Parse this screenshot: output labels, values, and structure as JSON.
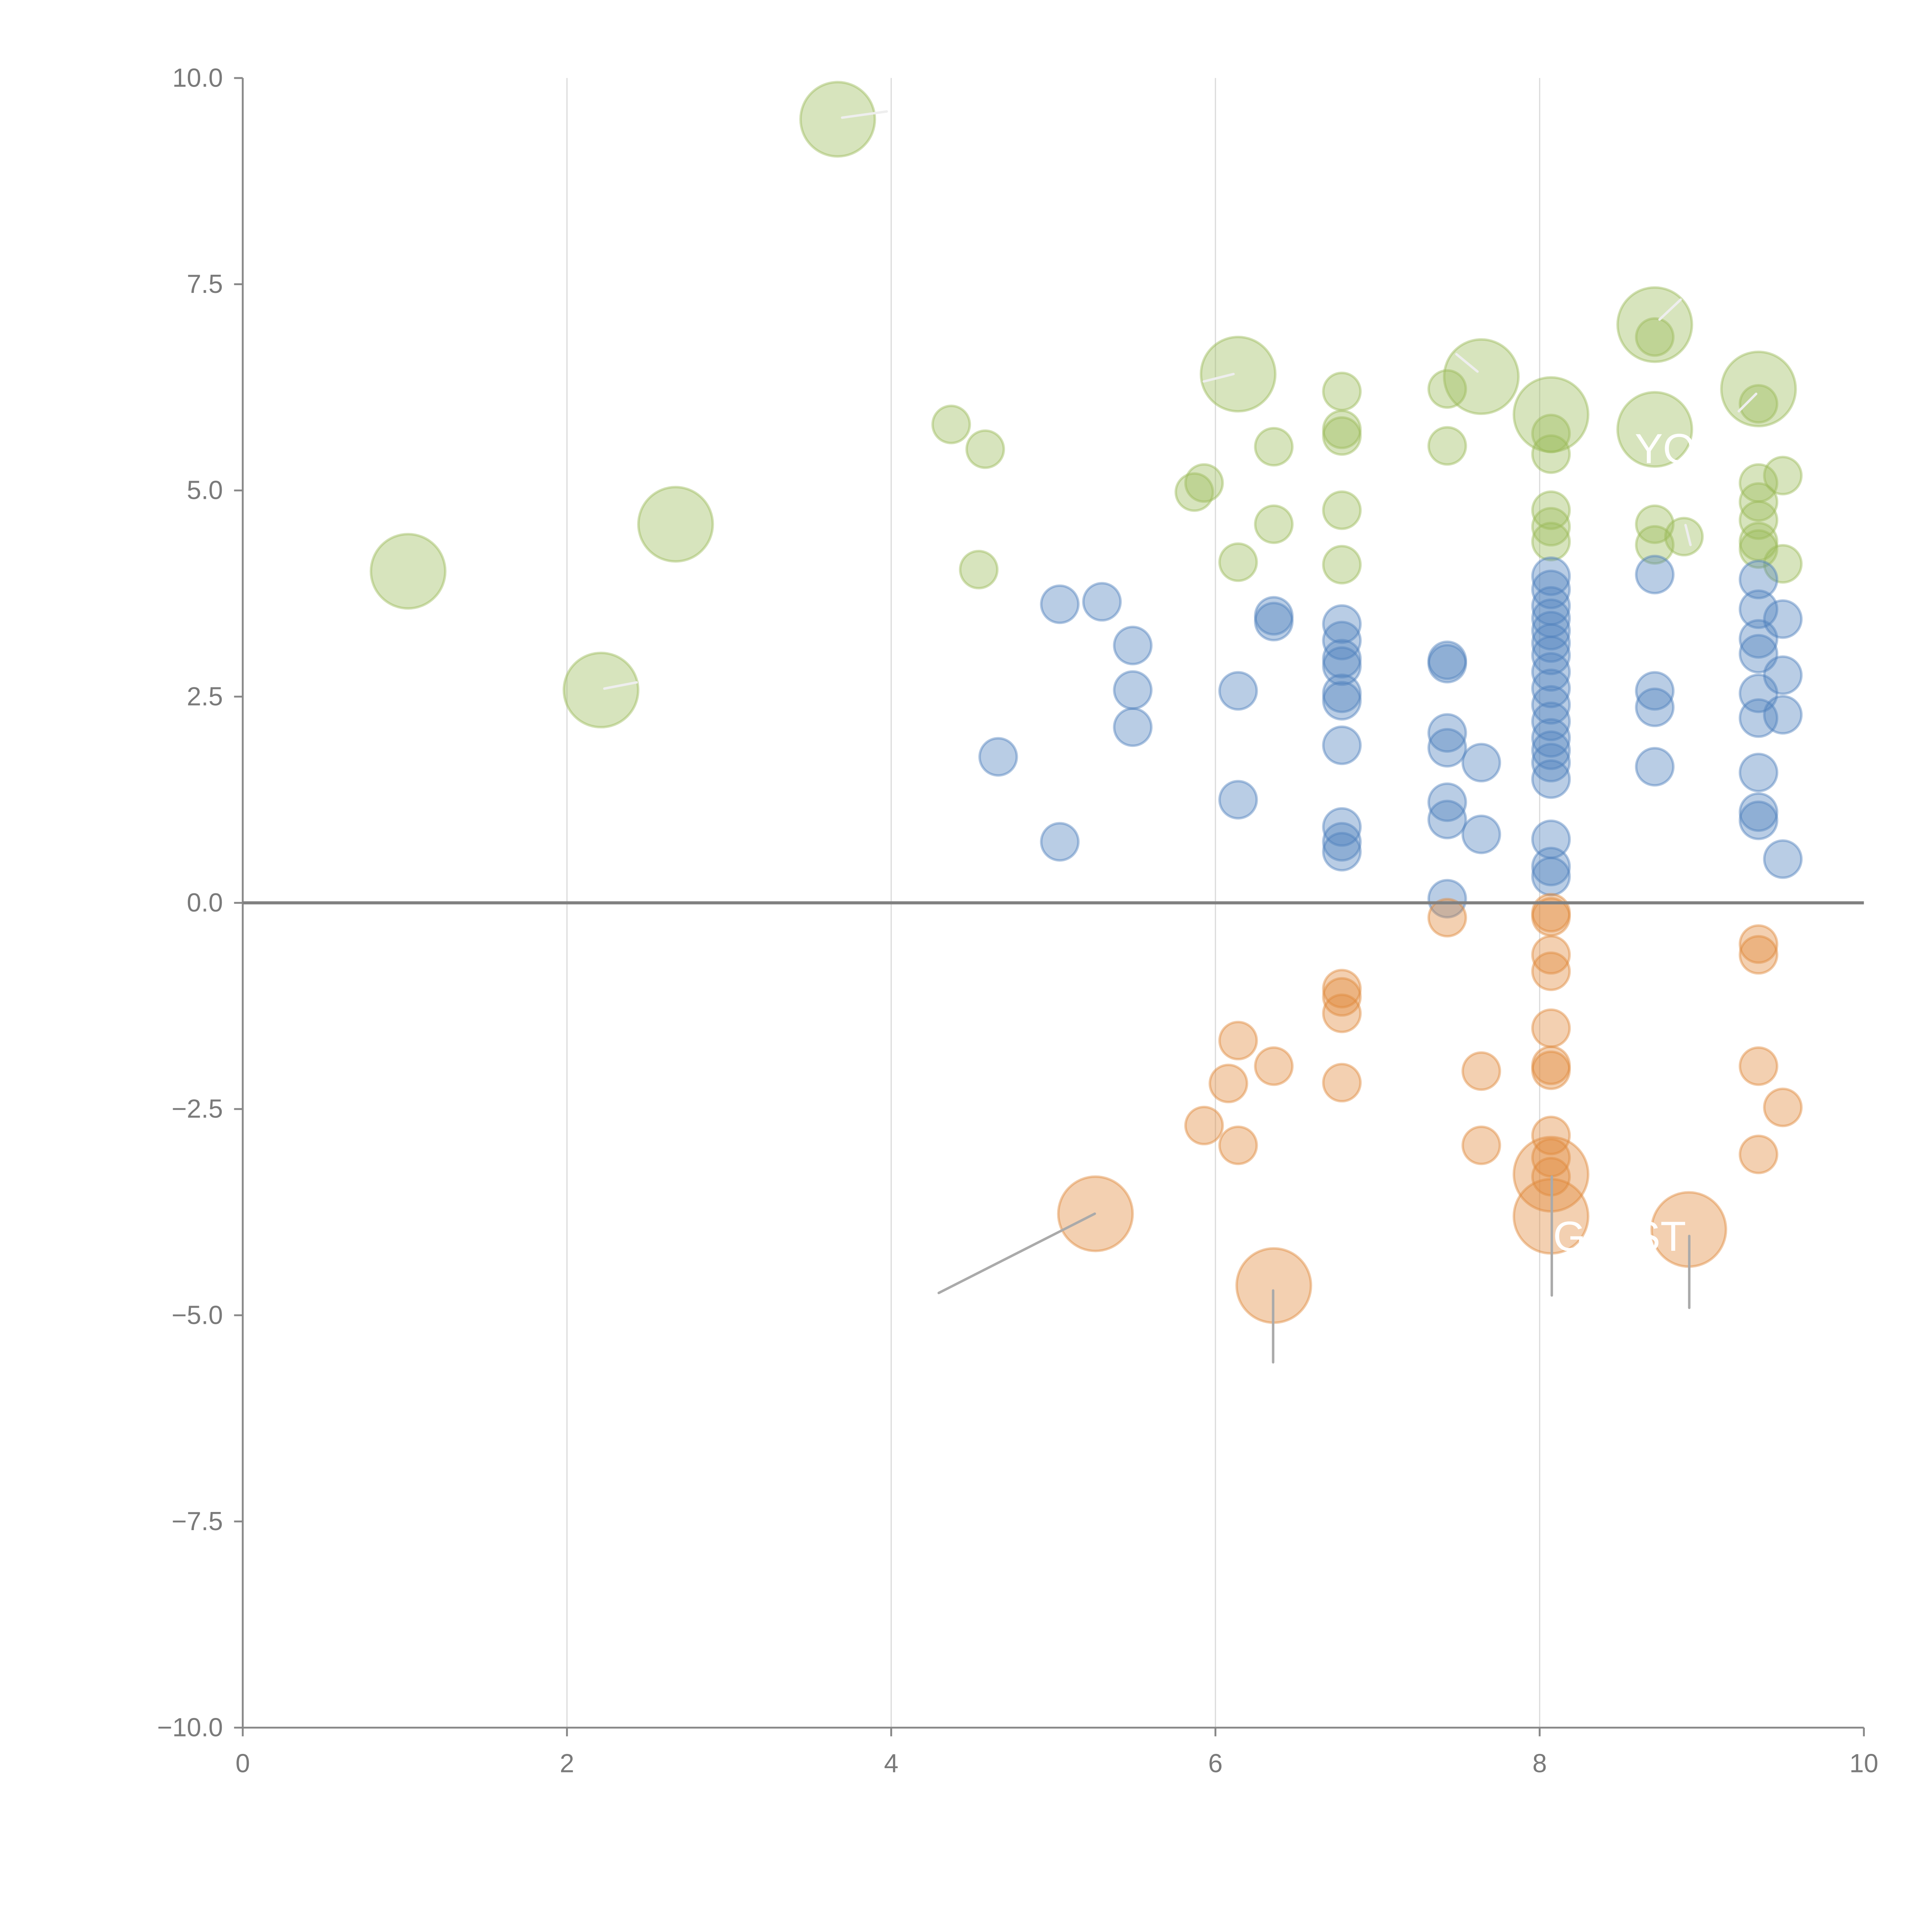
{
  "chart_data": {
    "type": "scatter",
    "title": "",
    "xlabel": "",
    "ylabel": "",
    "xlim": [
      0,
      10
    ],
    "ylim": [
      -10,
      10
    ],
    "grid": "vertical",
    "legend": "none",
    "x_ticks": [
      "0",
      "2",
      "4",
      "6",
      "8",
      "10"
    ],
    "y_ticks": [
      "10.0",
      "7.5",
      "5.0",
      "2.5",
      "0.0",
      "−2.5",
      "−5.0",
      "−7.5",
      "−10.0"
    ],
    "colors": {
      "green": "#9bbb59",
      "blue": "#4f81bd",
      "orange": "#e08a3c"
    },
    "annotations": [
      "YO",
      "G",
      "ST"
    ],
    "series": [
      {
        "name": "green",
        "color": "#9bbb59",
        "points": [
          [
            3.67,
            9.5,
            2
          ],
          [
            1.02,
            4.02,
            2
          ],
          [
            2.67,
            4.59,
            2
          ],
          [
            2.21,
            2.58,
            2
          ],
          [
            6.14,
            6.41,
            2
          ],
          [
            7.64,
            6.38,
            2
          ],
          [
            8.07,
            5.92,
            2
          ],
          [
            8.71,
            7.01,
            2
          ],
          [
            8.71,
            5.74,
            2
          ],
          [
            9.35,
            6.23,
            2
          ],
          [
            4.37,
            5.8,
            1
          ],
          [
            4.58,
            5.5,
            1
          ],
          [
            4.54,
            4.04,
            1
          ],
          [
            5.87,
            4.98,
            1
          ],
          [
            5.93,
            5.09,
            1
          ],
          [
            6.14,
            4.13,
            1
          ],
          [
            6.36,
            5.53,
            1
          ],
          [
            6.36,
            4.59,
            1
          ],
          [
            6.78,
            6.2,
            1
          ],
          [
            6.78,
            5.74,
            1
          ],
          [
            6.78,
            5.66,
            1
          ],
          [
            6.78,
            4.76,
            1
          ],
          [
            6.78,
            4.1,
            1
          ],
          [
            7.43,
            6.23,
            1
          ],
          [
            7.43,
            5.54,
            1
          ],
          [
            8.07,
            5.69,
            1
          ],
          [
            8.07,
            5.44,
            1
          ],
          [
            8.07,
            4.76,
            1
          ],
          [
            8.07,
            4.56,
            1
          ],
          [
            8.07,
            4.38,
            1
          ],
          [
            8.71,
            6.86,
            1
          ],
          [
            8.71,
            4.59,
            1
          ],
          [
            8.71,
            4.34,
            1
          ],
          [
            8.89,
            4.44,
            1
          ],
          [
            9.35,
            6.05,
            1
          ],
          [
            9.35,
            5.09,
            1
          ],
          [
            9.35,
            4.86,
            1
          ],
          [
            9.35,
            4.64,
            1
          ],
          [
            9.35,
            4.38,
            1
          ],
          [
            9.35,
            4.29,
            1
          ],
          [
            9.5,
            5.18,
            1
          ],
          [
            9.5,
            4.11,
            1
          ]
        ]
      },
      {
        "name": "blue",
        "color": "#4f81bd",
        "points": [
          [
            5.04,
            3.62,
            1
          ],
          [
            5.3,
            3.65,
            1
          ],
          [
            5.49,
            3.12,
            1
          ],
          [
            5.49,
            2.58,
            1
          ],
          [
            5.49,
            2.13,
            1
          ],
          [
            4.66,
            1.77,
            1
          ],
          [
            5.04,
            0.74,
            1
          ],
          [
            6.14,
            2.57,
            1
          ],
          [
            6.14,
            1.25,
            1
          ],
          [
            6.36,
            3.48,
            1
          ],
          [
            6.36,
            3.41,
            1
          ],
          [
            6.78,
            3.38,
            1
          ],
          [
            6.78,
            3.18,
            1
          ],
          [
            6.78,
            2.96,
            1
          ],
          [
            6.78,
            2.87,
            1
          ],
          [
            6.78,
            2.54,
            1
          ],
          [
            6.78,
            2.45,
            1
          ],
          [
            6.78,
            1.91,
            1
          ],
          [
            6.78,
            0.92,
            1
          ],
          [
            6.78,
            0.74,
            1
          ],
          [
            6.78,
            0.62,
            1
          ],
          [
            7.43,
            2.94,
            1
          ],
          [
            7.43,
            2.9,
            1
          ],
          [
            7.43,
            2.06,
            1
          ],
          [
            7.43,
            1.88,
            1
          ],
          [
            7.43,
            1.22,
            1
          ],
          [
            7.43,
            1.01,
            1
          ],
          [
            7.43,
            0.05,
            1
          ],
          [
            7.64,
            1.7,
            1
          ],
          [
            7.64,
            0.83,
            1
          ],
          [
            8.07,
            3.96,
            1
          ],
          [
            8.07,
            3.8,
            1
          ],
          [
            8.07,
            3.6,
            1
          ],
          [
            8.07,
            3.45,
            1
          ],
          [
            8.07,
            3.3,
            1
          ],
          [
            8.07,
            3.15,
            1
          ],
          [
            8.07,
            3.0,
            1
          ],
          [
            8.07,
            2.8,
            1
          ],
          [
            8.07,
            2.6,
            1
          ],
          [
            8.07,
            2.4,
            1
          ],
          [
            8.07,
            2.2,
            1
          ],
          [
            8.07,
            2.0,
            1
          ],
          [
            8.07,
            1.85,
            1
          ],
          [
            8.07,
            1.7,
            1
          ],
          [
            8.07,
            1.5,
            1
          ],
          [
            8.07,
            0.77,
            1
          ],
          [
            8.07,
            0.44,
            1
          ],
          [
            8.07,
            0.32,
            1
          ],
          [
            8.71,
            3.98,
            1
          ],
          [
            8.71,
            2.57,
            1
          ],
          [
            8.71,
            2.37,
            1
          ],
          [
            8.71,
            1.65,
            1
          ],
          [
            9.35,
            3.92,
            1
          ],
          [
            9.35,
            3.56,
            1
          ],
          [
            9.35,
            3.2,
            1
          ],
          [
            9.35,
            3.02,
            1
          ],
          [
            9.35,
            2.54,
            1
          ],
          [
            9.35,
            2.24,
            1
          ],
          [
            9.35,
            1.58,
            1
          ],
          [
            9.35,
            1.1,
            1
          ],
          [
            9.35,
            1.0,
            1
          ],
          [
            9.5,
            3.44,
            1
          ],
          [
            9.5,
            2.76,
            1
          ],
          [
            9.5,
            2.28,
            1
          ],
          [
            9.5,
            0.53,
            1
          ]
        ]
      },
      {
        "name": "orange",
        "color": "#e08a3c",
        "points": [
          [
            5.26,
            -3.77,
            2
          ],
          [
            6.36,
            -4.64,
            2
          ],
          [
            8.07,
            -3.29,
            2
          ],
          [
            8.07,
            -3.8,
            2
          ],
          [
            8.92,
            -3.96,
            2
          ],
          [
            6.14,
            -1.67,
            1
          ],
          [
            6.08,
            -2.19,
            1
          ],
          [
            6.36,
            -1.98,
            1
          ],
          [
            5.93,
            -2.7,
            1
          ],
          [
            6.14,
            -2.94,
            1
          ],
          [
            6.78,
            -1.04,
            1
          ],
          [
            6.78,
            -1.14,
            1
          ],
          [
            6.78,
            -1.34,
            1
          ],
          [
            6.78,
            -2.18,
            1
          ],
          [
            7.43,
            -0.18,
            1
          ],
          [
            7.64,
            -2.04,
            1
          ],
          [
            7.64,
            -2.94,
            1
          ],
          [
            8.07,
            -0.12,
            1
          ],
          [
            8.07,
            -0.17,
            1
          ],
          [
            8.07,
            -0.63,
            1
          ],
          [
            8.07,
            -0.83,
            1
          ],
          [
            8.07,
            -1.52,
            1
          ],
          [
            8.07,
            -1.97,
            1
          ],
          [
            8.07,
            -2.03,
            1
          ],
          [
            8.07,
            -2.82,
            1
          ],
          [
            8.07,
            -3.09,
            1
          ],
          [
            8.07,
            -3.32,
            1
          ],
          [
            9.35,
            -0.5,
            1
          ],
          [
            9.35,
            -0.63,
            1
          ],
          [
            9.35,
            -1.98,
            1
          ],
          [
            9.35,
            -3.05,
            1
          ],
          [
            9.5,
            -2.48,
            1
          ]
        ]
      }
    ]
  }
}
